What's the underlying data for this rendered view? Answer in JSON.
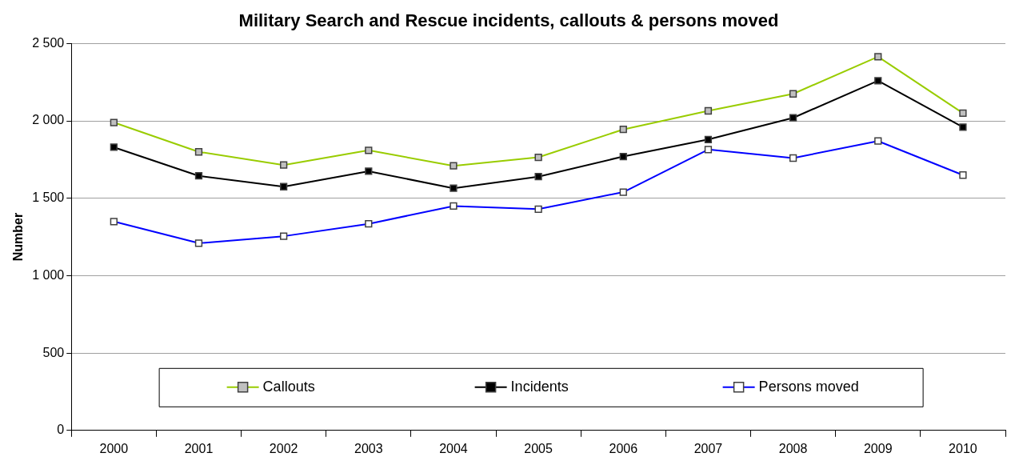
{
  "chart_data": {
    "type": "line",
    "title": "Military Search and Rescue incidents, callouts & persons moved",
    "ylabel": "Number",
    "categories": [
      "2000",
      "2001",
      "2002",
      "2003",
      "2004",
      "2005",
      "2006",
      "2007",
      "2008",
      "2009",
      "2010"
    ],
    "series": [
      {
        "name": "Callouts",
        "color": "#99cc00",
        "values": [
          1990,
          1800,
          1715,
          1810,
          1710,
          1765,
          1945,
          2065,
          2175,
          2415,
          2050
        ]
      },
      {
        "name": "Incidents",
        "color": "#000000",
        "values": [
          1830,
          1645,
          1575,
          1675,
          1565,
          1640,
          1770,
          1880,
          2020,
          2260,
          1960
        ]
      },
      {
        "name": "Persons moved",
        "color": "#0000ff",
        "values": [
          1350,
          1210,
          1255,
          1335,
          1450,
          1430,
          1540,
          1815,
          1760,
          1870,
          1650
        ]
      }
    ],
    "ylim": [
      0,
      2500
    ],
    "yticks": [
      0,
      {
        "value": 500,
        "label": "500"
      },
      {
        "value": 1000,
        "label": "1 000"
      },
      {
        "value": 1500,
        "label": "1 500"
      },
      {
        "value": 2000,
        "label": "2 000"
      },
      {
        "value": 2500,
        "label": "2 500"
      }
    ],
    "grid": "y",
    "legend": "bottom",
    "marker": "square",
    "line_style": "solid"
  }
}
